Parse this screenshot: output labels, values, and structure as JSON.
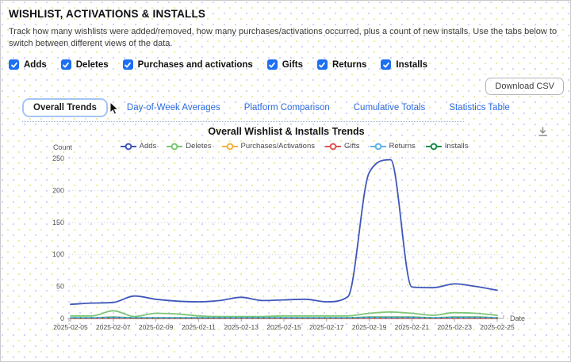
{
  "page": {
    "title": "WISHLIST, ACTIVATIONS & INSTALLS",
    "description": "Track how many wishlists were added/removed, how many purchases/activations occurred, plus a count of new installs. Use the tabs below to switch between different views of the data."
  },
  "filters": [
    {
      "label": "Adds",
      "checked": true
    },
    {
      "label": "Deletes",
      "checked": true
    },
    {
      "label": "Purchases and activations",
      "checked": true
    },
    {
      "label": "Gifts",
      "checked": true
    },
    {
      "label": "Returns",
      "checked": true
    },
    {
      "label": "Installs",
      "checked": true
    }
  ],
  "toolbar": {
    "download_csv_label": "Download CSV"
  },
  "tabs": [
    {
      "label": "Overall Trends",
      "active": true
    },
    {
      "label": "Day-of-Week Averages",
      "active": false
    },
    {
      "label": "Platform Comparison",
      "active": false
    },
    {
      "label": "Cumulative Totals",
      "active": false
    },
    {
      "label": "Statistics Table",
      "active": false
    }
  ],
  "chart_data": {
    "type": "line",
    "title": "Overall Wishlist & Installs Trends",
    "xlabel": "Date",
    "ylabel": "Count",
    "ylim": [
      0,
      250
    ],
    "yticks": [
      0,
      50,
      100,
      150,
      200,
      250
    ],
    "grid": "horizontal-dotted",
    "legend_position": "top",
    "x": [
      "2025-02-05",
      "2025-02-06",
      "2025-02-07",
      "2025-02-08",
      "2025-02-09",
      "2025-02-10",
      "2025-02-11",
      "2025-02-12",
      "2025-02-13",
      "2025-02-14",
      "2025-02-15",
      "2025-02-16",
      "2025-02-17",
      "2025-02-18",
      "2025-02-19",
      "2025-02-20",
      "2025-02-21",
      "2025-02-22",
      "2025-02-23",
      "2025-02-24",
      "2025-02-25"
    ],
    "xtick_labels": [
      "2025-02-05",
      "2025-02-07",
      "2025-02-09",
      "2025-02-11",
      "2025-02-13",
      "2025-02-15",
      "2025-02-17",
      "2025-02-19",
      "2025-02-21",
      "2025-02-23",
      "2025-02-25"
    ],
    "series": [
      {
        "name": "Adds",
        "color": "#3f57ba",
        "dashed": false,
        "values": [
          22,
          24,
          25,
          35,
          30,
          27,
          26,
          28,
          33,
          28,
          29,
          30,
          26,
          34,
          228,
          248,
          49,
          48,
          54,
          50,
          44
        ]
      },
      {
        "name": "Deletes",
        "color": "#7cc674",
        "dashed": false,
        "values": [
          4,
          4,
          12,
          3,
          8,
          7,
          4,
          3,
          3,
          3,
          4,
          4,
          4,
          4,
          8,
          10,
          8,
          5,
          9,
          8,
          5
        ]
      },
      {
        "name": "Purchases/Activations",
        "color": "#f3b23e",
        "dashed": false,
        "values": [
          0,
          0,
          1,
          0,
          0,
          0,
          0,
          0,
          1,
          0,
          0,
          0,
          0,
          0,
          1,
          1,
          1,
          0,
          1,
          0,
          0
        ]
      },
      {
        "name": "Gifts",
        "color": "#df5353",
        "dashed": false,
        "values": [
          0,
          0,
          0,
          0,
          0,
          0,
          0,
          0,
          0,
          0,
          0,
          0,
          0,
          0,
          0,
          0,
          0,
          0,
          0,
          0,
          0
        ]
      },
      {
        "name": "Returns",
        "color": "#5cb3e4",
        "dashed": true,
        "values": [
          1,
          1,
          1,
          1,
          1,
          1,
          1,
          1,
          1,
          1,
          1,
          1,
          1,
          1,
          1,
          1,
          1,
          1,
          1,
          1,
          1
        ]
      },
      {
        "name": "Installs",
        "color": "#1a8a4a",
        "dashed": false,
        "values": [
          1,
          1,
          2,
          1,
          1,
          1,
          1,
          1,
          1,
          1,
          1,
          1,
          1,
          1,
          2,
          2,
          2,
          1,
          2,
          2,
          1
        ]
      }
    ]
  }
}
